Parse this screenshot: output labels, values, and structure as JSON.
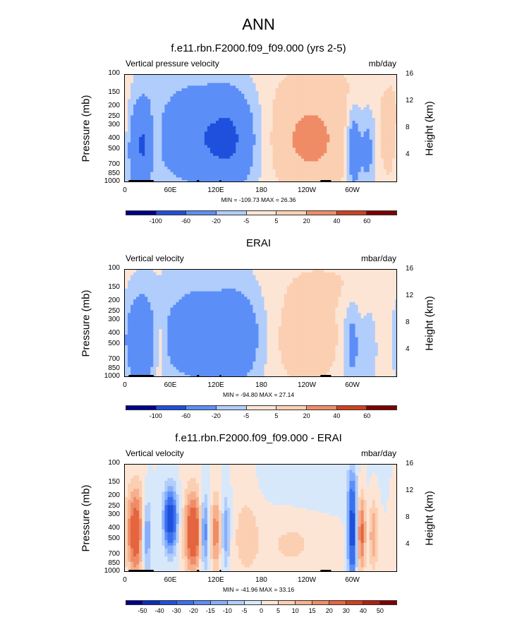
{
  "title": "ANN",
  "chart_data": [
    {
      "type": "heatmap",
      "title": "f.e11.rbn.F2000.f09_f09.000 (yrs 2-5)",
      "left_label": "Vertical pressure velocity",
      "units": "mb/day",
      "ylabel": "Pressure (mb)",
      "ylabel_right": "Height (km)",
      "y_ticks": [
        "100",
        "150",
        "200",
        "250",
        "300",
        "400",
        "500",
        "700",
        "850",
        "1000"
      ],
      "y_ticks_right": [
        "16",
        "12",
        "8",
        "4"
      ],
      "x_ticks": [
        "0",
        "60E",
        "120E",
        "180",
        "120W",
        "60W"
      ],
      "minmax": "MIN = -109.73  MAX = 26.36",
      "levels": [
        "-100",
        "-60",
        "-20",
        "-5",
        "5",
        "20",
        "40",
        "60"
      ],
      "colors": [
        "#00008b",
        "#0a2fbd",
        "#1e50dd",
        "#3a6fee",
        "#5c8ef7",
        "#86aefb",
        "#b0cdfc",
        "#d8e8fb",
        "#fde5d5",
        "#fbcfb2",
        "#f6b08e",
        "#ef8c67",
        "#e4653f",
        "#d1401f",
        "#b12010",
        "#7f0000"
      ],
      "features": [
        {
          "lon": 22,
          "p": 450,
          "hw": 14,
          "hp": 430,
          "v": -60
        },
        {
          "lon": 90,
          "p": 380,
          "hw": 32,
          "hp": 380,
          "v": -50
        },
        {
          "lon": 140,
          "p": 400,
          "hw": 22,
          "hp": 420,
          "v": -55
        },
        {
          "lon": 40,
          "p": 420,
          "hw": 6,
          "hp": 350,
          "v": 28
        },
        {
          "lon": 245,
          "p": 400,
          "hw": 35,
          "hp": 400,
          "v": 25
        },
        {
          "lon": 302,
          "p": 500,
          "hw": 6,
          "hp": 400,
          "v": -45
        },
        {
          "lon": 320,
          "p": 500,
          "hw": 7,
          "hp": 400,
          "v": -30
        },
        {
          "lon": 355,
          "p": 350,
          "hw": 12,
          "hp": 350,
          "v": 18
        },
        {
          "lon": 270,
          "p": 130,
          "hw": 60,
          "hp": 60,
          "v": 5
        },
        {
          "lon": 70,
          "p": 120,
          "hw": 60,
          "hp": 60,
          "v": -5
        }
      ]
    },
    {
      "type": "heatmap",
      "title": "ERAI",
      "left_label": "Vertical velocity",
      "units": "mbar/day",
      "ylabel": "Pressure (mb)",
      "ylabel_right": "Height (km)",
      "y_ticks": [
        "100",
        "150",
        "200",
        "250",
        "300",
        "400",
        "500",
        "700",
        "850",
        "1000"
      ],
      "y_ticks_right": [
        "16",
        "12",
        "8",
        "4"
      ],
      "x_ticks": [
        "0",
        "60E",
        "120E",
        "180",
        "120W",
        "60W"
      ],
      "minmax": "MIN = -94.80  MAX = 27.14",
      "levels": [
        "-100",
        "-60",
        "-20",
        "-5",
        "5",
        "20",
        "40",
        "60"
      ],
      "colors": [
        "#00008b",
        "#0a2fbd",
        "#1e50dd",
        "#3a6fee",
        "#5c8ef7",
        "#86aefb",
        "#b0cdfc",
        "#d8e8fb",
        "#fde5d5",
        "#fbcfb2",
        "#f6b08e",
        "#ef8c67",
        "#e4653f",
        "#d1401f",
        "#b12010",
        "#7f0000"
      ],
      "features": [
        {
          "lon": 20,
          "p": 450,
          "hw": 13,
          "hp": 430,
          "v": -50
        },
        {
          "lon": 95,
          "p": 420,
          "hw": 35,
          "hp": 400,
          "v": -45
        },
        {
          "lon": 150,
          "p": 420,
          "hw": 20,
          "hp": 400,
          "v": -40
        },
        {
          "lon": 45,
          "p": 450,
          "hw": 6,
          "hp": 350,
          "v": 20
        },
        {
          "lon": 240,
          "p": 430,
          "hw": 28,
          "hp": 400,
          "v": 15
        },
        {
          "lon": 300,
          "p": 500,
          "hw": 7,
          "hp": 400,
          "v": -30
        },
        {
          "lon": 322,
          "p": 550,
          "hw": 6,
          "hp": 350,
          "v": -20
        },
        {
          "lon": 270,
          "p": 130,
          "hw": 60,
          "hp": 60,
          "v": 5
        },
        {
          "lon": 100,
          "p": 120,
          "hw": 60,
          "hp": 60,
          "v": -5
        }
      ]
    },
    {
      "type": "heatmap",
      "title": "f.e11.rbn.F2000.f09_f09.000 - ERAI",
      "left_label": "Vertical velocity",
      "units": "mbar/day",
      "ylabel": "Pressure (mb)",
      "ylabel_right": "Height (km)",
      "y_ticks": [
        "100",
        "150",
        "200",
        "250",
        "300",
        "400",
        "500",
        "700",
        "850",
        "1000"
      ],
      "y_ticks_right": [
        "16",
        "12",
        "8",
        "4"
      ],
      "x_ticks": [
        "0",
        "60E",
        "120E",
        "180",
        "120W",
        "60W"
      ],
      "minmax": "MIN = -41.96  MAX = 33.16",
      "levels": [
        "-50",
        "-40",
        "-30",
        "-20",
        "-15",
        "-10",
        "-5",
        "0",
        "5",
        "10",
        "15",
        "20",
        "30",
        "40",
        "50"
      ],
      "colors": [
        "#00008b",
        "#0a2fbd",
        "#1e50dd",
        "#3a6fee",
        "#5c8ef7",
        "#86aefb",
        "#b0cdfc",
        "#d8e8fb",
        "#fde5d5",
        "#fbcfb2",
        "#f6b08e",
        "#ef8c67",
        "#e4653f",
        "#d1401f",
        "#b12010",
        "#7f0000"
      ],
      "features": [
        {
          "lon": 15,
          "p": 420,
          "hw": 9,
          "hp": 400,
          "v": 28
        },
        {
          "lon": 28,
          "p": 450,
          "hw": 5,
          "hp": 350,
          "v": -22
        },
        {
          "lon": 60,
          "p": 320,
          "hw": 6,
          "hp": 180,
          "v": -38
        },
        {
          "lon": 90,
          "p": 420,
          "hw": 8,
          "hp": 350,
          "v": 30
        },
        {
          "lon": 105,
          "p": 420,
          "hw": 4,
          "hp": 300,
          "v": -22
        },
        {
          "lon": 120,
          "p": 420,
          "hw": 5,
          "hp": 320,
          "v": 18
        },
        {
          "lon": 133,
          "p": 420,
          "hw": 4,
          "hp": 300,
          "v": -15
        },
        {
          "lon": 160,
          "p": 450,
          "hw": 12,
          "hp": 400,
          "v": 8
        },
        {
          "lon": 300,
          "p": 400,
          "hw": 4,
          "hp": 450,
          "v": -38
        },
        {
          "lon": 312,
          "p": 430,
          "hw": 4,
          "hp": 350,
          "v": 22
        },
        {
          "lon": 328,
          "p": 450,
          "hw": 4,
          "hp": 300,
          "v": 15
        },
        {
          "lon": 220,
          "p": 550,
          "hw": 30,
          "hp": 300,
          "v": 6
        },
        {
          "lon": 250,
          "p": 150,
          "hw": 40,
          "hp": 60,
          "v": -4
        }
      ]
    }
  ]
}
